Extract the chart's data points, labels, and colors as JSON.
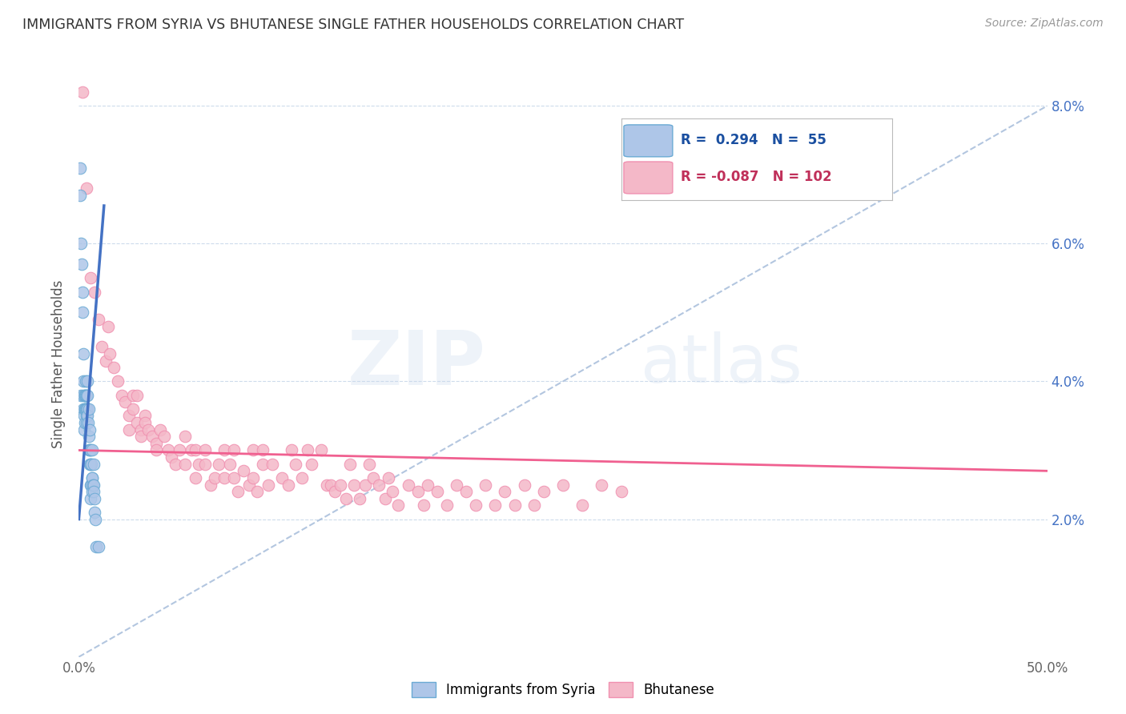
{
  "title": "IMMIGRANTS FROM SYRIA VS BHUTANESE SINGLE FATHER HOUSEHOLDS CORRELATION CHART",
  "source": "Source: ZipAtlas.com",
  "ylabel": "Single Father Households",
  "xlim": [
    0.0,
    0.5
  ],
  "ylim": [
    0.0,
    0.085
  ],
  "xtick_vals": [
    0.0,
    0.1,
    0.2,
    0.3,
    0.4,
    0.5
  ],
  "xticklabels": [
    "0.0%",
    "",
    "",
    "",
    "",
    "50.0%"
  ],
  "ytick_vals": [
    0.02,
    0.04,
    0.06,
    0.08
  ],
  "ytick_right_labels": [
    "2.0%",
    "4.0%",
    "6.0%",
    "8.0%"
  ],
  "syria_color": "#aec6e8",
  "bhutanese_color": "#f4b8c8",
  "syria_edge_color": "#6aaad4",
  "bhutanese_edge_color": "#f090b0",
  "syria_line_color": "#4472c4",
  "bhutanese_line_color": "#f06090",
  "trend_dash_color": "#a0b8d8",
  "background_color": "#ffffff",
  "watermark_zip": "ZIP",
  "watermark_atlas": "atlas",
  "right_tick_color": "#4472c4",
  "syria_scatter": [
    [
      0.0008,
      0.071
    ],
    [
      0.0008,
      0.067
    ],
    [
      0.001,
      0.06
    ],
    [
      0.0012,
      0.038
    ],
    [
      0.0015,
      0.057
    ],
    [
      0.0018,
      0.053
    ],
    [
      0.002,
      0.05
    ],
    [
      0.0022,
      0.044
    ],
    [
      0.0022,
      0.04
    ],
    [
      0.0025,
      0.038
    ],
    [
      0.0025,
      0.036
    ],
    [
      0.0028,
      0.035
    ],
    [
      0.0028,
      0.033
    ],
    [
      0.003,
      0.038
    ],
    [
      0.003,
      0.036
    ],
    [
      0.003,
      0.034
    ],
    [
      0.0032,
      0.038
    ],
    [
      0.0032,
      0.036
    ],
    [
      0.0035,
      0.04
    ],
    [
      0.0035,
      0.038
    ],
    [
      0.0035,
      0.036
    ],
    [
      0.0038,
      0.038
    ],
    [
      0.0038,
      0.036
    ],
    [
      0.004,
      0.035
    ],
    [
      0.004,
      0.034
    ],
    [
      0.0042,
      0.04
    ],
    [
      0.0042,
      0.038
    ],
    [
      0.0045,
      0.036
    ],
    [
      0.0045,
      0.035
    ],
    [
      0.0048,
      0.034
    ],
    [
      0.005,
      0.036
    ],
    [
      0.005,
      0.032
    ],
    [
      0.0052,
      0.03
    ],
    [
      0.0055,
      0.033
    ],
    [
      0.0055,
      0.03
    ],
    [
      0.0058,
      0.028
    ],
    [
      0.006,
      0.03
    ],
    [
      0.006,
      0.028
    ],
    [
      0.0062,
      0.025
    ],
    [
      0.0062,
      0.023
    ],
    [
      0.0065,
      0.028
    ],
    [
      0.0065,
      0.025
    ],
    [
      0.0068,
      0.026
    ],
    [
      0.0068,
      0.024
    ],
    [
      0.007,
      0.03
    ],
    [
      0.007,
      0.026
    ],
    [
      0.0072,
      0.025
    ],
    [
      0.0075,
      0.028
    ],
    [
      0.0075,
      0.025
    ],
    [
      0.0078,
      0.024
    ],
    [
      0.008,
      0.023
    ],
    [
      0.008,
      0.021
    ],
    [
      0.0085,
      0.02
    ],
    [
      0.009,
      0.016
    ],
    [
      0.01,
      0.016
    ]
  ],
  "bhutanese_scatter": [
    [
      0.002,
      0.082
    ],
    [
      0.004,
      0.068
    ],
    [
      0.006,
      0.055
    ],
    [
      0.008,
      0.053
    ],
    [
      0.01,
      0.049
    ],
    [
      0.012,
      0.045
    ],
    [
      0.014,
      0.043
    ],
    [
      0.015,
      0.048
    ],
    [
      0.016,
      0.044
    ],
    [
      0.018,
      0.042
    ],
    [
      0.02,
      0.04
    ],
    [
      0.022,
      0.038
    ],
    [
      0.024,
      0.037
    ],
    [
      0.026,
      0.035
    ],
    [
      0.026,
      0.033
    ],
    [
      0.028,
      0.038
    ],
    [
      0.028,
      0.036
    ],
    [
      0.03,
      0.038
    ],
    [
      0.03,
      0.034
    ],
    [
      0.032,
      0.033
    ],
    [
      0.032,
      0.032
    ],
    [
      0.034,
      0.035
    ],
    [
      0.034,
      0.034
    ],
    [
      0.036,
      0.033
    ],
    [
      0.038,
      0.032
    ],
    [
      0.04,
      0.031
    ],
    [
      0.04,
      0.03
    ],
    [
      0.042,
      0.033
    ],
    [
      0.044,
      0.032
    ],
    [
      0.046,
      0.03
    ],
    [
      0.048,
      0.029
    ],
    [
      0.05,
      0.028
    ],
    [
      0.052,
      0.03
    ],
    [
      0.055,
      0.032
    ],
    [
      0.055,
      0.028
    ],
    [
      0.058,
      0.03
    ],
    [
      0.06,
      0.03
    ],
    [
      0.06,
      0.026
    ],
    [
      0.062,
      0.028
    ],
    [
      0.065,
      0.03
    ],
    [
      0.065,
      0.028
    ],
    [
      0.068,
      0.025
    ],
    [
      0.07,
      0.026
    ],
    [
      0.072,
      0.028
    ],
    [
      0.075,
      0.03
    ],
    [
      0.075,
      0.026
    ],
    [
      0.078,
      0.028
    ],
    [
      0.08,
      0.03
    ],
    [
      0.08,
      0.026
    ],
    [
      0.082,
      0.024
    ],
    [
      0.085,
      0.027
    ],
    [
      0.088,
      0.025
    ],
    [
      0.09,
      0.03
    ],
    [
      0.09,
      0.026
    ],
    [
      0.092,
      0.024
    ],
    [
      0.095,
      0.03
    ],
    [
      0.095,
      0.028
    ],
    [
      0.098,
      0.025
    ],
    [
      0.1,
      0.028
    ],
    [
      0.105,
      0.026
    ],
    [
      0.108,
      0.025
    ],
    [
      0.11,
      0.03
    ],
    [
      0.112,
      0.028
    ],
    [
      0.115,
      0.026
    ],
    [
      0.118,
      0.03
    ],
    [
      0.12,
      0.028
    ],
    [
      0.125,
      0.03
    ],
    [
      0.128,
      0.025
    ],
    [
      0.13,
      0.025
    ],
    [
      0.132,
      0.024
    ],
    [
      0.135,
      0.025
    ],
    [
      0.138,
      0.023
    ],
    [
      0.14,
      0.028
    ],
    [
      0.142,
      0.025
    ],
    [
      0.145,
      0.023
    ],
    [
      0.148,
      0.025
    ],
    [
      0.15,
      0.028
    ],
    [
      0.152,
      0.026
    ],
    [
      0.155,
      0.025
    ],
    [
      0.158,
      0.023
    ],
    [
      0.16,
      0.026
    ],
    [
      0.162,
      0.024
    ],
    [
      0.165,
      0.022
    ],
    [
      0.17,
      0.025
    ],
    [
      0.175,
      0.024
    ],
    [
      0.178,
      0.022
    ],
    [
      0.18,
      0.025
    ],
    [
      0.185,
      0.024
    ],
    [
      0.19,
      0.022
    ],
    [
      0.195,
      0.025
    ],
    [
      0.2,
      0.024
    ],
    [
      0.205,
      0.022
    ],
    [
      0.21,
      0.025
    ],
    [
      0.215,
      0.022
    ],
    [
      0.22,
      0.024
    ],
    [
      0.225,
      0.022
    ],
    [
      0.23,
      0.025
    ],
    [
      0.235,
      0.022
    ],
    [
      0.24,
      0.024
    ],
    [
      0.25,
      0.025
    ],
    [
      0.26,
      0.022
    ],
    [
      0.27,
      0.025
    ],
    [
      0.28,
      0.024
    ]
  ],
  "syria_trend": {
    "x_start": 0.0,
    "x_end": 0.013,
    "slope": 3.5,
    "intercept": 0.02
  },
  "syria_dash_trend": {
    "x_start": 0.0,
    "x_end": 0.5,
    "slope": 0.16,
    "intercept": 0.0
  },
  "bhutanese_trend": {
    "x_start": 0.0,
    "x_end": 0.5,
    "slope": -0.006,
    "intercept": 0.03
  }
}
